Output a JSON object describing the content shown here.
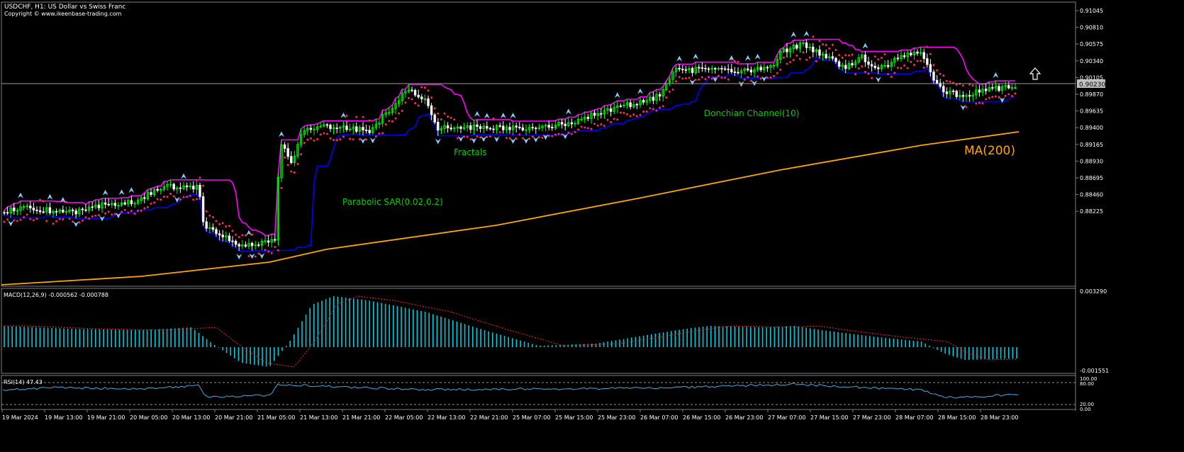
{
  "header": {
    "symbol_line": "USDCHF, H1:  US Dollar vs Swiss Franc",
    "copyright": "Copyright © www.ikeenbase-trading.com"
  },
  "price_panel": {
    "current_price": "0.90230",
    "y_ticks": [
      "0.91045",
      "0.90810",
      "0.90575",
      "0.90340",
      "0.90105",
      "0.89870",
      "0.89635",
      "0.89400",
      "0.89165",
      "0.88930",
      "0.88695",
      "0.88460",
      "0.88225"
    ],
    "labels": {
      "parabolic_sar": "Parabolic SAR(0.02,0.2)",
      "fractals": "Fractals",
      "donchian": "Donchian Channel(10)",
      "ma": "MA(200)"
    },
    "arrow_icon": "up-arrow-icon"
  },
  "macd_panel": {
    "label": "MACD(12,26,9) -0.000562 -0.000788",
    "y_ticks": [
      "0.003290",
      "-0.001551"
    ]
  },
  "rsi_panel": {
    "label": "RSI(14) 47.43",
    "y_ticks": [
      "100.00",
      "80.00",
      "20.00",
      "0.00"
    ]
  },
  "time_axis": [
    "19 Mar 2024",
    "19 Mar 13:00",
    "19 Mar 21:00",
    "20 Mar 05:00",
    "20 Mar 13:00",
    "20 Mar 21:00",
    "21 Mar 05:00",
    "21 Mar 13:00",
    "21 Mar 21:00",
    "22 Mar 05:00",
    "22 Mar 13:00",
    "22 Mar 21:00",
    "25 Mar 07:00",
    "25 Mar 15:00",
    "25 Mar 23:00",
    "26 Mar 07:00",
    "26 Mar 15:00",
    "26 Mar 23:00",
    "27 Mar 07:00",
    "27 Mar 15:00",
    "27 Mar 23:00",
    "28 Mar 07:00",
    "28 Mar 15:00",
    "28 Mar 23:00"
  ],
  "colors": {
    "background": "#000000",
    "grid": "#808080",
    "text": "#ffffff",
    "bull_candle": "#00ff00",
    "bear_candle": "#ffffff",
    "donchian_upper": "#ff00ff",
    "donchian_lower": "#0000ff",
    "sar": "#ff2a55",
    "ma": "#ffa500",
    "fractals": "#80d0ff",
    "macd_hist": "#00c8dc",
    "macd_signal": "#ff2020",
    "rsi": "#3aa0d0",
    "annotation": "#00d000"
  }
}
